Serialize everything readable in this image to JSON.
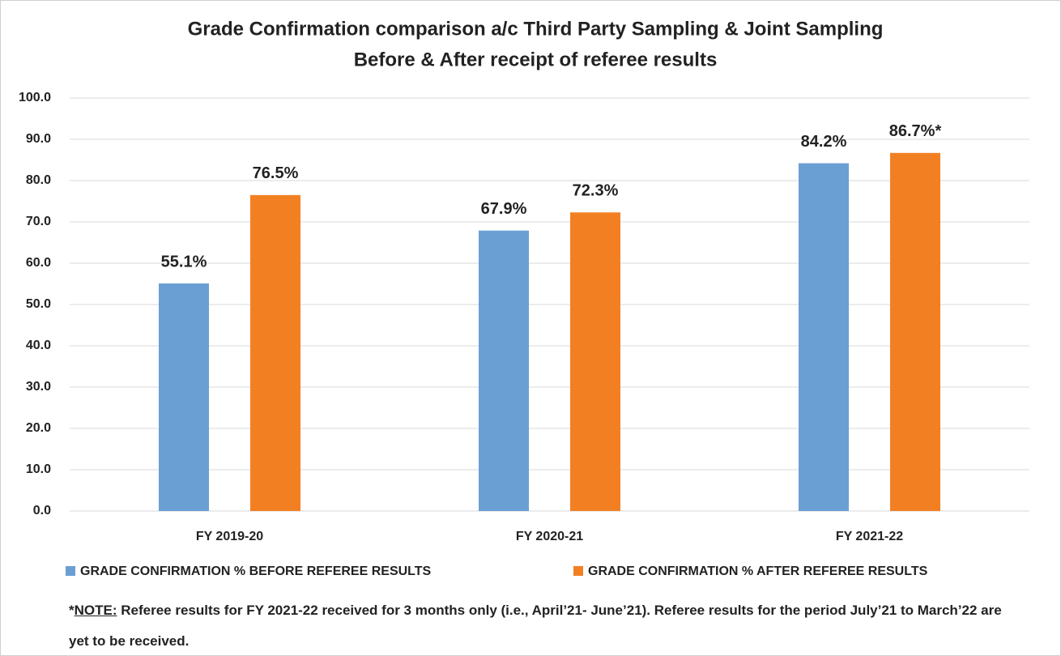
{
  "chart_data": {
    "type": "bar",
    "title": [
      "Grade Confirmation comparison a/c Third Party Sampling & Joint Sampling",
      "Before & After receipt of referee results"
    ],
    "categories": [
      "FY 2019-20",
      "FY 2020-21",
      "FY 2021-22"
    ],
    "series": [
      {
        "name": "GRADE CONFIRMATION % BEFORE REFEREE RESULTS",
        "color": "#6a9fd3",
        "values": [
          55.1,
          67.9,
          84.2
        ],
        "value_labels": [
          "55.1%",
          "67.9%",
          "84.2%"
        ]
      },
      {
        "name": "GRADE CONFIRMATION % AFTER REFEREE RESULTS",
        "color": "#f28023",
        "values": [
          76.5,
          72.3,
          86.7
        ],
        "value_labels": [
          "76.5%",
          "72.3%",
          "86.7%*"
        ]
      }
    ],
    "ylim": [
      0,
      100
    ],
    "yticks": [
      {
        "value": 0,
        "label": "0.0"
      },
      {
        "value": 10,
        "label": "10.0"
      },
      {
        "value": 20,
        "label": "20.0"
      },
      {
        "value": 30,
        "label": "30.0"
      },
      {
        "value": 40,
        "label": "40.0"
      },
      {
        "value": 50,
        "label": "50.0"
      },
      {
        "value": 60,
        "label": "60.0"
      },
      {
        "value": 70,
        "label": "70.0"
      },
      {
        "value": 80,
        "label": "80.0"
      },
      {
        "value": 90,
        "label": "90.0"
      },
      {
        "value": 100,
        "label": "100.0"
      }
    ],
    "grid": true,
    "legend": "bottom",
    "note": {
      "marker": "*",
      "label": "NOTE:",
      "text": " Referee results for FY 2021-22 received for 3 months only (i.e., April’21- June’21). Referee results for the period July’21 to March’22 are yet to be received."
    }
  }
}
